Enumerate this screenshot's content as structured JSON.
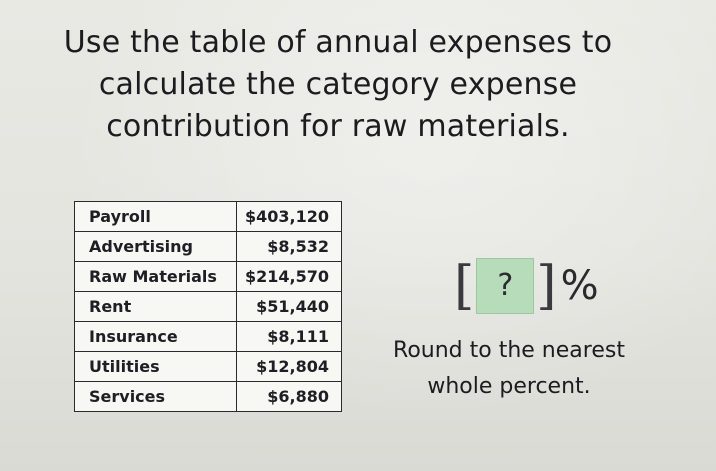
{
  "question": {
    "line1": "Use the table of annual expenses to",
    "line2": "calculate the category expense",
    "line3": "contribution for raw materials."
  },
  "table": {
    "rows": [
      {
        "category": "Payroll",
        "amount": "$403,120"
      },
      {
        "category": "Advertising",
        "amount": "$8,532"
      },
      {
        "category": "Raw Materials",
        "amount": "$214,570"
      },
      {
        "category": "Rent",
        "amount": "$51,440"
      },
      {
        "category": "Insurance",
        "amount": "$8,111"
      },
      {
        "category": "Utilities",
        "amount": "$12,804"
      },
      {
        "category": "Services",
        "amount": "$6,880"
      }
    ]
  },
  "answer": {
    "open_bracket": "[",
    "placeholder": "?",
    "close_bracket": "]",
    "unit": "%"
  },
  "hint": {
    "line1": "Round to the nearest",
    "line2": "whole percent."
  },
  "colors": {
    "answer_box": "#b6dcb9",
    "table_border": "#2a2a2e",
    "background": "#e6e6e1"
  }
}
